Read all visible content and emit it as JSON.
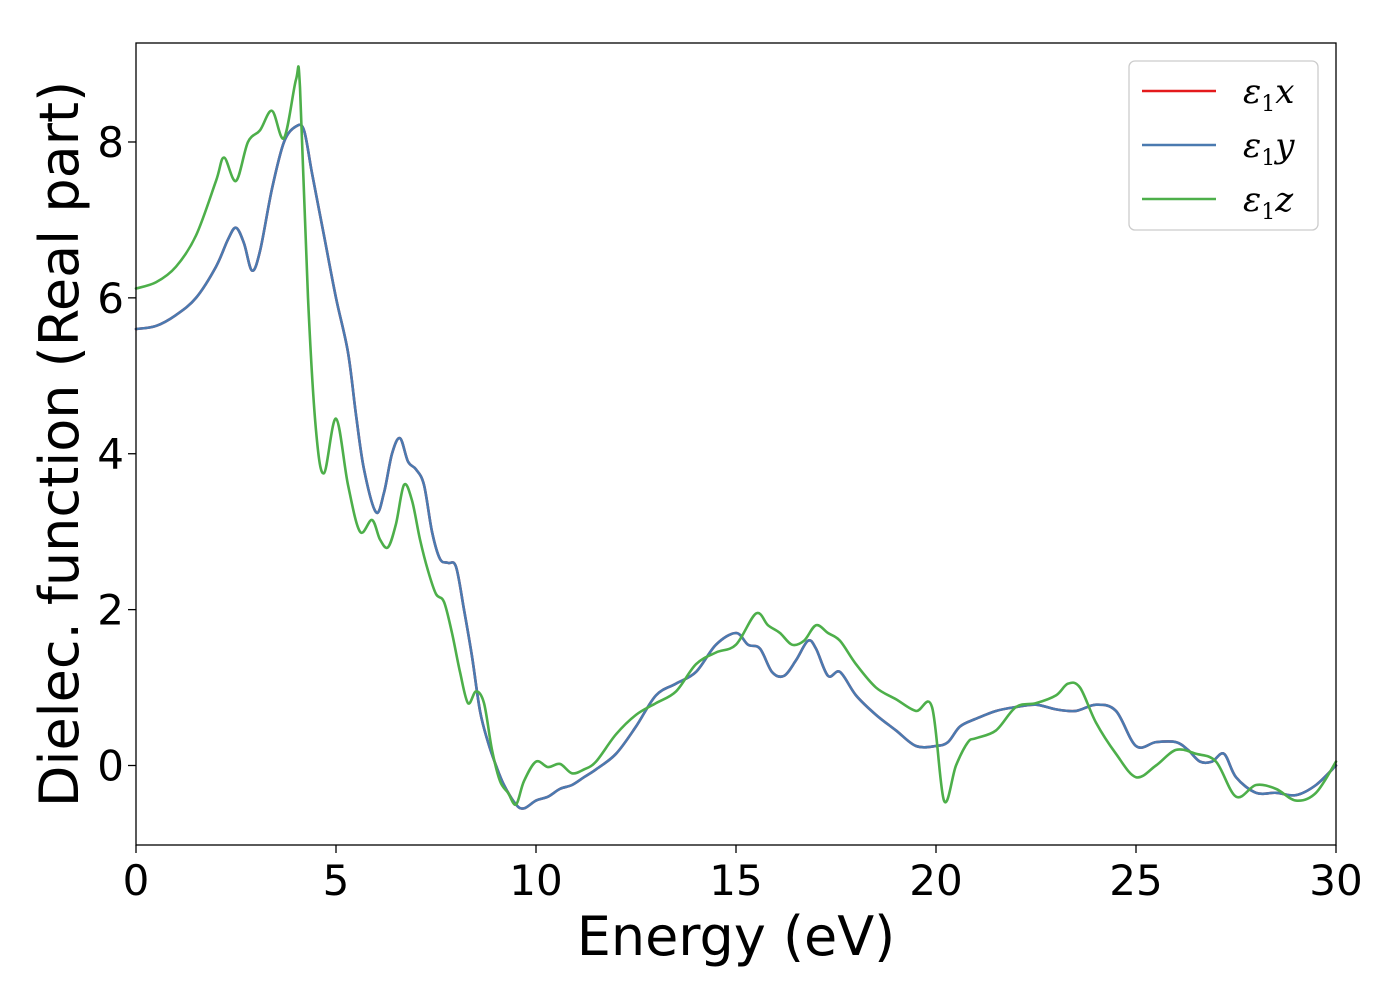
{
  "chart_data": {
    "type": "line",
    "title": "",
    "xlabel": "Energy (eV)",
    "ylabel": "Dielec. function (Real part)",
    "xlim": [
      0,
      30
    ],
    "ylim": [
      -1.02,
      9.27
    ],
    "xticks": [
      0,
      5,
      10,
      15,
      20,
      25,
      30
    ],
    "xtick_labels": [
      "0",
      "5",
      "10",
      "15",
      "20",
      "25",
      "30"
    ],
    "yticks": [
      0,
      2,
      4,
      6,
      8
    ],
    "ytick_labels": [
      "0",
      "2",
      "4",
      "6",
      "8"
    ],
    "grid": false,
    "legend_position": "top-right",
    "series": [
      {
        "name": "ε1x",
        "legend": {
          "symbol": "ε",
          "sub": "1",
          "axis": "x"
        },
        "color": "#e41a1c",
        "x": [
          0,
          0.5,
          1,
          1.5,
          2,
          2.3,
          2.5,
          2.7,
          2.9,
          3.1,
          3.4,
          3.7,
          4,
          4.2,
          4.4,
          4.7,
          5,
          5.3,
          5.5,
          5.7,
          6,
          6.2,
          6.4,
          6.6,
          6.8,
          7,
          7.2,
          7.4,
          7.6,
          7.8,
          8,
          8.2,
          8.4,
          8.6,
          8.8,
          9,
          9.2,
          9.5,
          9.7,
          10,
          10.3,
          10.6,
          10.9,
          11.2,
          11.5,
          12,
          12.5,
          13,
          13.5,
          14,
          14.5,
          15,
          15.3,
          15.6,
          15.9,
          16.2,
          16.5,
          16.8,
          17,
          17.3,
          17.6,
          18,
          18.5,
          19,
          19.5,
          20,
          20.3,
          20.6,
          21,
          21.5,
          22,
          22.5,
          23,
          23.5,
          24,
          24.5,
          25,
          25.5,
          26,
          26.3,
          26.6,
          26.9,
          27.2,
          27.5,
          28,
          28.5,
          29,
          29.5,
          30
        ],
        "y": [
          5.6,
          5.64,
          5.78,
          6.0,
          6.4,
          6.75,
          6.9,
          6.7,
          6.35,
          6.6,
          7.4,
          8.0,
          8.2,
          8.15,
          7.6,
          6.8,
          6.0,
          5.3,
          4.5,
          3.8,
          3.25,
          3.5,
          4.0,
          4.2,
          3.9,
          3.8,
          3.6,
          3.0,
          2.65,
          2.6,
          2.55,
          2.0,
          1.4,
          0.7,
          0.3,
          0.0,
          -0.25,
          -0.5,
          -0.55,
          -0.45,
          -0.4,
          -0.3,
          -0.25,
          -0.15,
          -0.05,
          0.15,
          0.5,
          0.9,
          1.05,
          1.2,
          1.55,
          1.7,
          1.55,
          1.5,
          1.2,
          1.15,
          1.35,
          1.6,
          1.5,
          1.15,
          1.2,
          0.9,
          0.65,
          0.45,
          0.25,
          0.25,
          0.3,
          0.5,
          0.6,
          0.7,
          0.75,
          0.78,
          0.72,
          0.7,
          0.78,
          0.7,
          0.25,
          0.3,
          0.3,
          0.2,
          0.05,
          0.05,
          0.15,
          -0.15,
          -0.35,
          -0.35,
          -0.38,
          -0.25,
          0.0
        ]
      },
      {
        "name": "ε1y",
        "legend": {
          "symbol": "ε",
          "sub": "1",
          "axis": "y"
        },
        "color": "#4a7ab0",
        "x": [
          0,
          0.5,
          1,
          1.5,
          2,
          2.3,
          2.5,
          2.7,
          2.9,
          3.1,
          3.4,
          3.7,
          4,
          4.2,
          4.4,
          4.7,
          5,
          5.3,
          5.5,
          5.7,
          6,
          6.2,
          6.4,
          6.6,
          6.8,
          7,
          7.2,
          7.4,
          7.6,
          7.8,
          8,
          8.2,
          8.4,
          8.6,
          8.8,
          9,
          9.2,
          9.5,
          9.7,
          10,
          10.3,
          10.6,
          10.9,
          11.2,
          11.5,
          12,
          12.5,
          13,
          13.5,
          14,
          14.5,
          15,
          15.3,
          15.6,
          15.9,
          16.2,
          16.5,
          16.8,
          17,
          17.3,
          17.6,
          18,
          18.5,
          19,
          19.5,
          20,
          20.3,
          20.6,
          21,
          21.5,
          22,
          22.5,
          23,
          23.5,
          24,
          24.5,
          25,
          25.5,
          26,
          26.3,
          26.6,
          26.9,
          27.2,
          27.5,
          28,
          28.5,
          29,
          29.5,
          30
        ],
        "y": [
          5.6,
          5.64,
          5.78,
          6.0,
          6.4,
          6.75,
          6.9,
          6.7,
          6.35,
          6.6,
          7.4,
          8.0,
          8.2,
          8.15,
          7.6,
          6.8,
          6.0,
          5.3,
          4.5,
          3.8,
          3.25,
          3.5,
          4.0,
          4.2,
          3.9,
          3.8,
          3.6,
          3.0,
          2.65,
          2.6,
          2.55,
          2.0,
          1.4,
          0.7,
          0.3,
          0.0,
          -0.25,
          -0.5,
          -0.55,
          -0.45,
          -0.4,
          -0.3,
          -0.25,
          -0.15,
          -0.05,
          0.15,
          0.5,
          0.9,
          1.05,
          1.2,
          1.55,
          1.7,
          1.55,
          1.5,
          1.2,
          1.15,
          1.35,
          1.6,
          1.5,
          1.15,
          1.2,
          0.9,
          0.65,
          0.45,
          0.25,
          0.25,
          0.3,
          0.5,
          0.6,
          0.7,
          0.75,
          0.78,
          0.72,
          0.7,
          0.78,
          0.7,
          0.25,
          0.3,
          0.3,
          0.2,
          0.05,
          0.05,
          0.15,
          -0.15,
          -0.35,
          -0.35,
          -0.38,
          -0.25,
          0.0
        ]
      },
      {
        "name": "ε1z",
        "legend": {
          "symbol": "ε",
          "sub": "1",
          "axis": "z"
        },
        "color": "#4daf4a",
        "x": [
          0,
          0.5,
          1,
          1.5,
          2,
          2.2,
          2.5,
          2.8,
          3.1,
          3.4,
          3.7,
          4,
          4.1,
          4.3,
          4.5,
          4.7,
          5,
          5.3,
          5.6,
          5.9,
          6.1,
          6.3,
          6.5,
          6.7,
          6.9,
          7.1,
          7.3,
          7.5,
          7.7,
          7.9,
          8.1,
          8.3,
          8.5,
          8.7,
          8.9,
          9.1,
          9.3,
          9.5,
          9.7,
          10,
          10.3,
          10.6,
          10.9,
          11.2,
          11.5,
          12,
          12.5,
          13,
          13.5,
          14,
          14.5,
          15,
          15.5,
          15.8,
          16.1,
          16.4,
          16.7,
          17,
          17.3,
          17.6,
          18,
          18.5,
          19,
          19.5,
          19.9,
          20.2,
          20.5,
          20.8,
          21,
          21.5,
          22,
          22.5,
          23,
          23.3,
          23.6,
          24,
          24.5,
          25,
          25.5,
          26,
          26.5,
          27,
          27.5,
          28,
          28.5,
          29,
          29.5,
          30
        ],
        "y": [
          6.12,
          6.2,
          6.4,
          6.8,
          7.5,
          7.8,
          7.5,
          8.0,
          8.15,
          8.4,
          8.05,
          8.8,
          8.7,
          6.0,
          4.3,
          3.75,
          4.45,
          3.6,
          3.0,
          3.15,
          2.9,
          2.8,
          3.1,
          3.6,
          3.4,
          2.9,
          2.5,
          2.2,
          2.1,
          1.7,
          1.2,
          0.8,
          0.95,
          0.8,
          0.2,
          -0.2,
          -0.35,
          -0.5,
          -0.2,
          0.05,
          -0.02,
          0.02,
          -0.1,
          -0.05,
          0.05,
          0.4,
          0.65,
          0.8,
          0.95,
          1.3,
          1.45,
          1.55,
          1.95,
          1.8,
          1.7,
          1.55,
          1.6,
          1.8,
          1.7,
          1.6,
          1.3,
          1.0,
          0.85,
          0.7,
          0.75,
          -0.45,
          0.0,
          0.3,
          0.35,
          0.45,
          0.75,
          0.8,
          0.9,
          1.05,
          1.0,
          0.55,
          0.15,
          -0.15,
          0.0,
          0.2,
          0.15,
          0.05,
          -0.4,
          -0.25,
          -0.3,
          -0.45,
          -0.35,
          0.05
        ]
      }
    ]
  }
}
